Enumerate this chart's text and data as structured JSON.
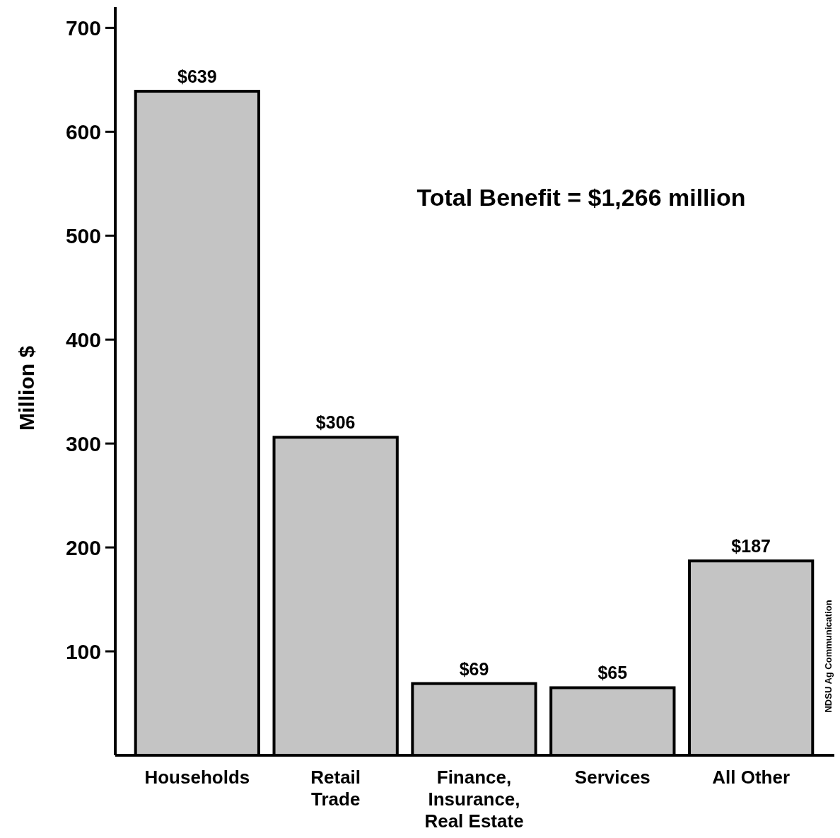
{
  "chart_data": {
    "type": "bar",
    "ylabel": "Million $",
    "categories": [
      "Households",
      "Retail Trade",
      "Finance, Insurance, Real Estate",
      "Services",
      "All Other"
    ],
    "values": [
      639,
      306,
      69,
      65,
      187
    ],
    "value_labels": [
      "$639",
      "$306",
      "$69",
      "$65",
      "$187"
    ],
    "color": "#c4c4c4",
    "ylim": [
      0,
      720
    ],
    "yticks": [
      100,
      200,
      300,
      400,
      500,
      600,
      700
    ],
    "annotations": [
      "Total Benefit = $1,266 million",
      "NDSU Ag Communication"
    ]
  }
}
